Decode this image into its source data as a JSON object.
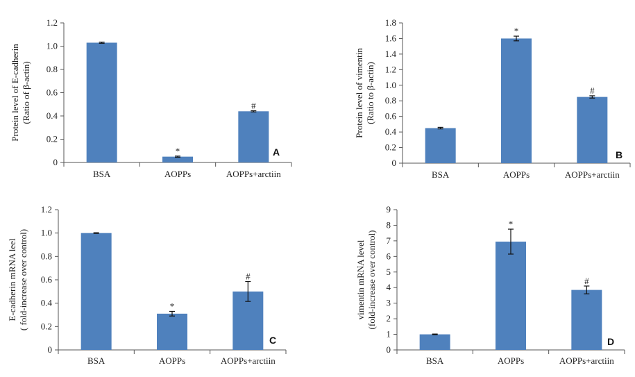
{
  "chart_data": [
    {
      "type": "bar",
      "panel_label": "A",
      "categories": [
        "BSA",
        "AOPPs",
        "AOPPs+arctiin"
      ],
      "values": [
        1.03,
        0.05,
        0.44
      ],
      "errors": [
        0.005,
        0.005,
        0.005
      ],
      "markers": [
        "",
        "*",
        "#"
      ],
      "ylabel_lines": [
        "Protein level of E-cadherin",
        "(Ratio of β-actin)"
      ],
      "ylim": [
        0,
        1.2
      ],
      "yticks": [
        "0",
        "0.2",
        "0.4",
        "0.6",
        "0.8",
        "1.0",
        "1.2"
      ],
      "bar_color": "#4f81bd",
      "grid": false
    },
    {
      "type": "bar",
      "panel_label": "B",
      "categories": [
        "BSA",
        "AOPPs",
        "AOPPs+arctiin"
      ],
      "values": [
        0.45,
        1.6,
        0.85
      ],
      "errors": [
        0.01,
        0.03,
        0.015
      ],
      "markers": [
        "",
        "*",
        "#"
      ],
      "ylabel_lines": [
        "Protein level of vimentin",
        "(Ratio to β-actin)"
      ],
      "ylim": [
        0,
        1.8
      ],
      "yticks": [
        "0",
        "0.2",
        "0.4",
        "0.6",
        "0.8",
        "1.0",
        "1.2",
        "1.4",
        "1.6",
        "1.8"
      ],
      "bar_color": "#4f81bd",
      "grid": false
    },
    {
      "type": "bar",
      "panel_label": "C",
      "categories": [
        "BSA",
        "AOPPs",
        "AOPPs+arctiin"
      ],
      "values": [
        1.0,
        0.31,
        0.5
      ],
      "errors": [
        0.003,
        0.02,
        0.085
      ],
      "markers": [
        "",
        "*",
        "#"
      ],
      "ylabel_lines": [
        "E-cadherin mRNA leel",
        "( fold-increase over control)"
      ],
      "ylim": [
        0,
        1.2
      ],
      "yticks": [
        "0",
        "0.2",
        "0.4",
        "0.6",
        "0.8",
        "1.0",
        "1.2"
      ],
      "bar_color": "#4f81bd",
      "grid": false
    },
    {
      "type": "bar",
      "panel_label": "D",
      "categories": [
        "BSA",
        "AOPPs",
        "AOPPs+arctiin"
      ],
      "values": [
        1.0,
        6.95,
        3.85
      ],
      "errors": [
        0.02,
        0.8,
        0.25
      ],
      "markers": [
        "",
        "*",
        "#"
      ],
      "ylabel_lines": [
        "vimentin mRNA level",
        "(fold-increase over control)"
      ],
      "ylim": [
        0,
        9
      ],
      "yticks": [
        "0",
        "1",
        "2",
        "3",
        "4",
        "5",
        "6",
        "7",
        "8",
        "9"
      ],
      "bar_color": "#4f81bd",
      "grid": false
    }
  ]
}
